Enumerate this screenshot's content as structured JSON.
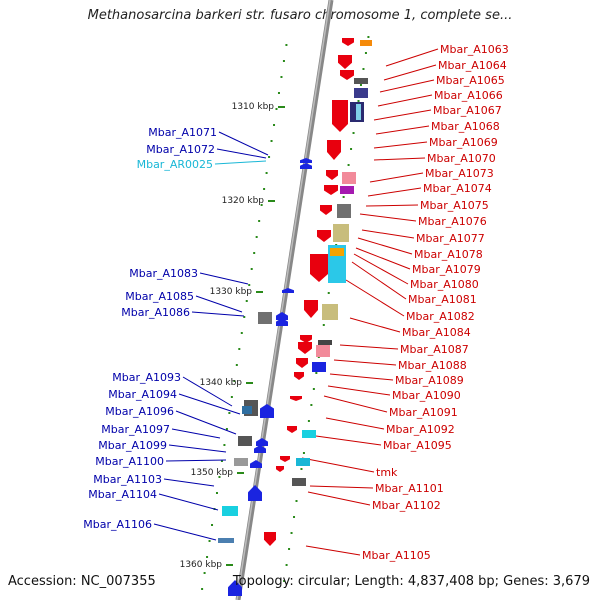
{
  "title": "Methanosarcina barkeri str. fusaro chromosome 1, complete se...",
  "accession": "Accession: NC_007355",
  "summary": "Topology: circular; Length: 4,837,408 bp; Genes: 3,679",
  "colors": {
    "backbone": "#808080",
    "forward_gene": "#e8000e",
    "reverse_gene": "#1a24e0",
    "forward_label": "#cc0000",
    "reverse_label": "#0000aa",
    "rna_label": "#19b7d6",
    "tick": "#2a8a1a"
  },
  "kbp_labels": [
    "1310 kbp",
    "1320 kbp",
    "1330 kbp",
    "1340 kbp",
    "1350 kbp",
    "1360 kbp"
  ],
  "forward_genes": [
    "Mbar_A1063",
    "Mbar_A1064",
    "Mbar_A1065",
    "Mbar_A1066",
    "Mbar_A1067",
    "Mbar_A1068",
    "Mbar_A1069",
    "Mbar_A1070",
    "Mbar_A1073",
    "Mbar_A1074",
    "Mbar_A1075",
    "Mbar_A1076",
    "Mbar_A1077",
    "Mbar_A1078",
    "Mbar_A1079",
    "Mbar_A1080",
    "Mbar_A1081",
    "Mbar_A1082",
    "Mbar_A1084",
    "Mbar_A1087",
    "Mbar_A1088",
    "Mbar_A1089",
    "Mbar_A1090",
    "Mbar_A1091",
    "Mbar_A1092",
    "Mbar_A1095",
    "tmk",
    "Mbar_A1101",
    "Mbar_A1102",
    "Mbar_A1105"
  ],
  "reverse_genes": [
    "Mbar_A1071",
    "Mbar_A1072",
    "Mbar_AR0025",
    "Mbar_A1083",
    "Mbar_A1085",
    "Mbar_A1086",
    "Mbar_A1093",
    "Mbar_A1094",
    "Mbar_A1096",
    "Mbar_A1097",
    "Mbar_A1099",
    "Mbar_A1100",
    "Mbar_A1103",
    "Mbar_A1104",
    "Mbar_A1106"
  ]
}
